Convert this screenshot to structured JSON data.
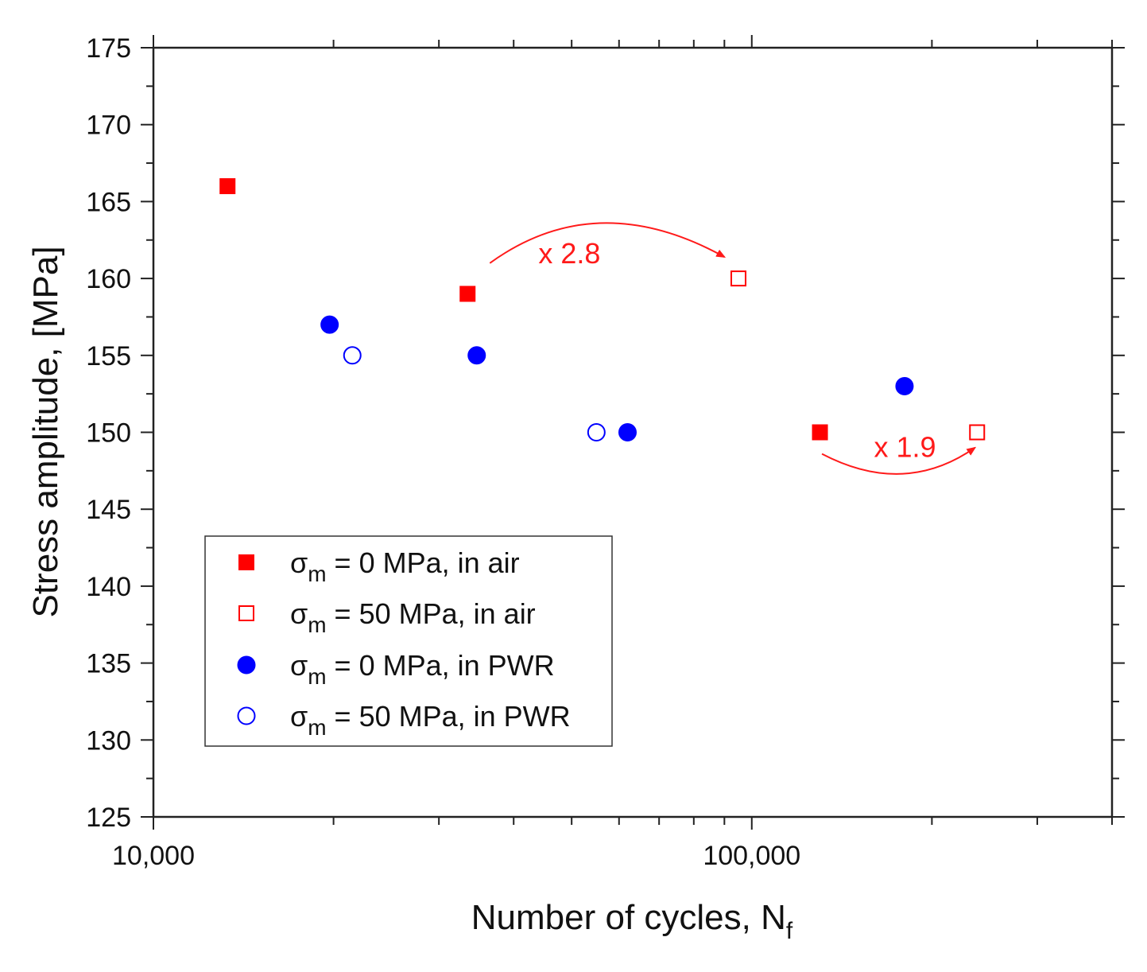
{
  "chart_data": {
    "type": "scatter",
    "title": "",
    "xlabel": "Number of cycles, N",
    "xlabel_sub": "f",
    "ylabel": "Stress amplitude, [MPa]",
    "x_scale": "log",
    "xlim": [
      10000,
      400000
    ],
    "ylim": [
      125,
      175
    ],
    "x_tick_labels": [
      {
        "value": 10000,
        "label": "10,000"
      },
      {
        "value": 100000,
        "label": "100,000"
      }
    ],
    "y_ticks": [
      125,
      130,
      135,
      140,
      145,
      150,
      155,
      160,
      165,
      170,
      175
    ],
    "y_tick_labels": [
      "125",
      "130",
      "135",
      "140",
      "145",
      "150",
      "155",
      "160",
      "165",
      "170",
      "175"
    ],
    "legend_position": "bottom-left",
    "series": [
      {
        "name": "σm = 0 MPa, in air",
        "legend_prefix": "σ",
        "legend_sub": "m",
        "legend_suffix": " = 0 MPa, in air",
        "marker": "square",
        "filled": true,
        "color": "#ff0000",
        "points": [
          [
            13300,
            166
          ],
          [
            33500,
            159
          ],
          [
            130000,
            150
          ]
        ]
      },
      {
        "name": "σm = 50 MPa, in air",
        "legend_prefix": "σ",
        "legend_sub": "m",
        "legend_suffix": " = 50 MPa, in air",
        "marker": "square",
        "filled": false,
        "color": "#ff0000",
        "points": [
          [
            95000,
            160
          ],
          [
            238000,
            150
          ]
        ]
      },
      {
        "name": "σm = 0 MPa, in PWR",
        "legend_prefix": "σ",
        "legend_sub": "m",
        "legend_suffix": " = 0 MPa, in PWR",
        "marker": "circle",
        "filled": true,
        "color": "#0000ff",
        "points": [
          [
            19700,
            157
          ],
          [
            34700,
            155
          ],
          [
            62000,
            150
          ],
          [
            180000,
            153
          ]
        ]
      },
      {
        "name": "σm = 50 MPa, in PWR",
        "legend_prefix": "σ",
        "legend_sub": "m",
        "legend_suffix": " = 50 MPa, in PWR",
        "marker": "circle",
        "filled": false,
        "color": "#0000ff",
        "points": [
          [
            21500,
            155
          ],
          [
            55000,
            150
          ]
        ]
      }
    ],
    "annotations": [
      {
        "text": "x 2.8",
        "color": "#ff1a1a",
        "text_at": [
          44000,
          161
        ],
        "arrow_from": [
          36500,
          161
        ],
        "arrow_control": [
          55000,
          166
        ],
        "arrow_to": [
          90000,
          161.4
        ]
      },
      {
        "text": "x 1.9",
        "color": "#ff1a1a",
        "text_at": [
          160000,
          148.4
        ],
        "arrow_from": [
          131000,
          148.6
        ],
        "arrow_control": [
          180000,
          145.8
        ],
        "arrow_to": [
          236000,
          149
        ]
      }
    ]
  }
}
